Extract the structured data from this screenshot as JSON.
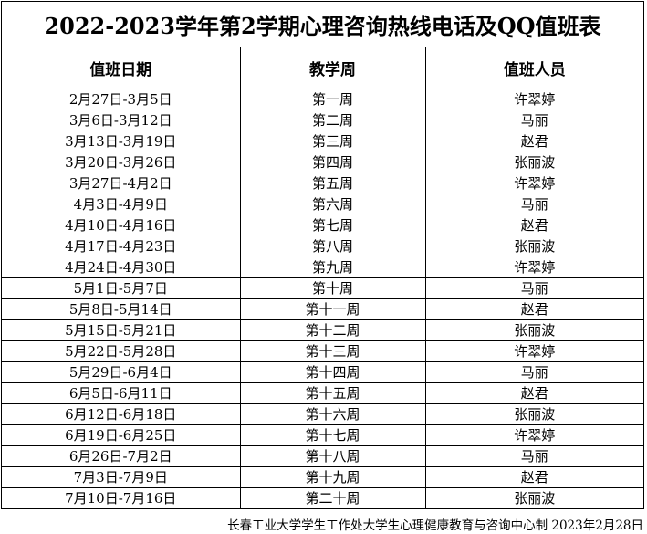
{
  "title": "2022-2023学年第2学期心理咨询热线电话及QQ值班表",
  "headers": [
    "值班日期",
    "教学周",
    "值班人员"
  ],
  "rows": [
    {
      "date": "2月27日-3月5日",
      "week": "第一周",
      "staff": "许翠婷"
    },
    {
      "date": "3月6日-3月12日",
      "week": "第二周",
      "staff": "马丽"
    },
    {
      "date": "3月13日-3月19日",
      "week": "第三周",
      "staff": "赵君"
    },
    {
      "date": "3月20日-3月26日",
      "week": "第四周",
      "staff": "张丽波"
    },
    {
      "date": "3月27日-4月2日",
      "week": "第五周",
      "staff": "许翠婷"
    },
    {
      "date": "4月3日-4月9日",
      "week": "第六周",
      "staff": "马丽"
    },
    {
      "date": "4月10日-4月16日",
      "week": "第七周",
      "staff": "赵君"
    },
    {
      "date": "4月17日-4月23日",
      "week": "第八周",
      "staff": "张丽波"
    },
    {
      "date": "4月24日-4月30日",
      "week": "第九周",
      "staff": "许翠婷"
    },
    {
      "date": "5月1日-5月7日",
      "week": "第十周",
      "staff": "马丽"
    },
    {
      "date": "5月8日-5月14日",
      "week": "第十一周",
      "staff": "赵君"
    },
    {
      "date": "5月15日-5月21日",
      "week": "第十二周",
      "staff": "张丽波"
    },
    {
      "date": "5月22日-5月28日",
      "week": "第十三周",
      "staff": "许翠婷"
    },
    {
      "date": "5月29日-6月4日",
      "week": "第十四周",
      "staff": "马丽"
    },
    {
      "date": "6月5日-6月11日",
      "week": "第十五周",
      "staff": "赵君"
    },
    {
      "date": "6月12日-6月18日",
      "week": "第十六周",
      "staff": "张丽波"
    },
    {
      "date": "6月19日-6月25日",
      "week": "第十七周",
      "staff": "许翠婷"
    },
    {
      "date": "6月26日-7月2日",
      "week": "第十八周",
      "staff": "马丽"
    },
    {
      "date": "7月3日-7月9日",
      "week": "第十九周",
      "staff": "赵君"
    },
    {
      "date": "7月10日-7月16日",
      "week": "第二十周",
      "staff": "张丽波"
    }
  ],
  "footer": "长春工业大学学生工作处大学生心理健康教育与咨询中心制 2023年2月28日"
}
